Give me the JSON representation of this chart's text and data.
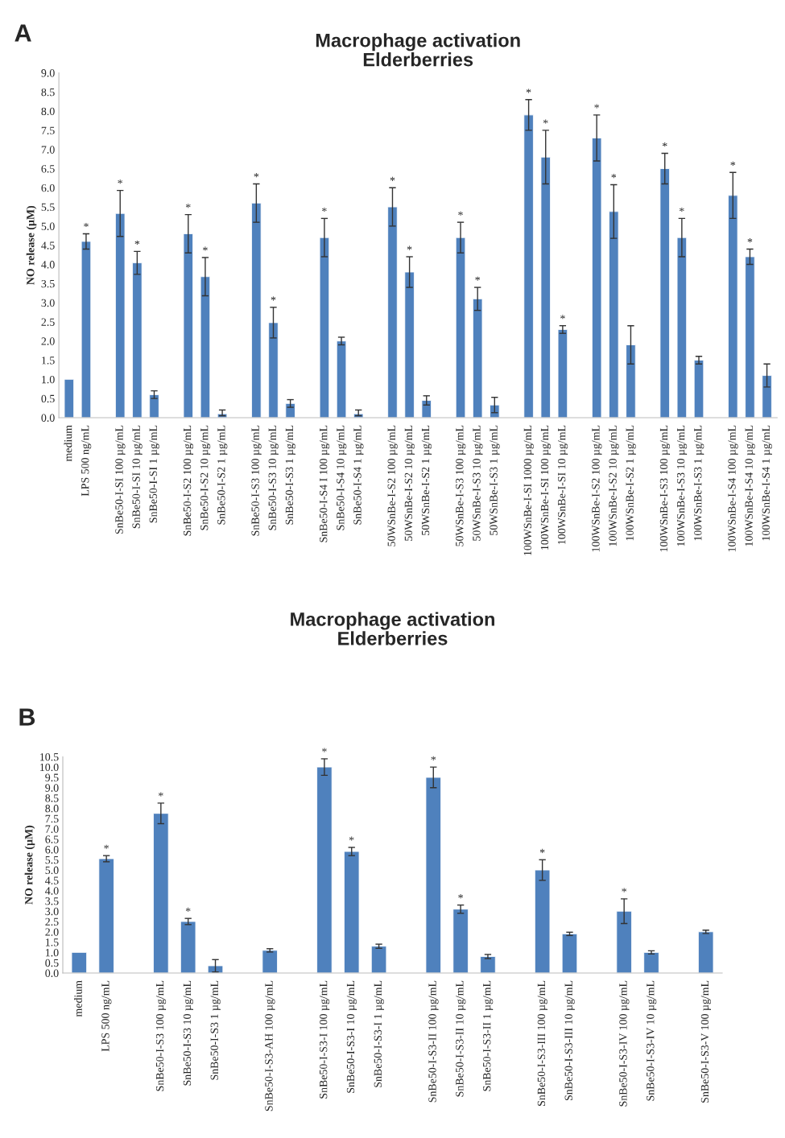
{
  "chart_data": [
    {
      "type": "bar",
      "title": "Macrophage activation\nElderberries",
      "ylabel": "NO release (µM)",
      "categories": [
        "medium",
        "LPS 500 ng/mL",
        null,
        "SnBe50-I-SI 100 µg/mL",
        "SnBe50-I-SI 10 µg/mL",
        "SnBe50-I-SI 1 µg/mL",
        null,
        "SnBe50-I-S2 100 µg/mL",
        "SnBe50-I-S2 10 µg/mL",
        "SnBe50-I-S2 1 µg/mL",
        null,
        "SnBe50-I-S3 100 µg/mL",
        "SnBe50-I-S3 10 µg/mL",
        "SnBe50-I-S3 1 µg/mL",
        null,
        "SnBe50-I-S4 I 100 µg/mL",
        "SnBe50-I-S4 10 µg/mL",
        "SnBe50-I-S4 1 µg/mL",
        null,
        "50WSnBe-I-S2 100 µg/mL",
        "50WSnBe-I-S2 10 µg/mL",
        "50WSnBe-I-S2 1 µg/mL",
        null,
        "50WSnBe-I-S3 100 µg/mL",
        "50WSnBe-I-S3 10 µg/mL",
        "50WSnBe-I-S3 1 µg/mL",
        null,
        "100WSnBe-I-SI 1000 µg/mL",
        "100WSnBe-I-SI 100 µg/mL",
        "100WSnBe-I-SI 10 µg/mL",
        null,
        "100WSnBe-I-S2 100 µg/mL",
        "100WSnBe-I-S2 10 µg/mL",
        "100WSnBe-I-S2 1 µg/mL",
        null,
        "100WSnBe-I-S3 100 µg/mL",
        "100WSnBe-I-S3 10 µg/mL",
        "100WSnBe-I-S3 1 µg/mL",
        null,
        "100WSnBe-I-S4 100 µg/mL",
        "100WSnBe-I-S4 10 µg/mL",
        "100WSnBe-I-S4 1 µg/mL"
      ],
      "color": "#4f81bd",
      "values": [
        1.0,
        4.6,
        null,
        5.33,
        4.04,
        0.6,
        null,
        4.8,
        3.68,
        0.1,
        null,
        5.6,
        2.48,
        0.37,
        null,
        4.7,
        2.0,
        0.1,
        null,
        5.5,
        3.8,
        0.45,
        null,
        4.7,
        3.1,
        0.33,
        null,
        7.9,
        6.8,
        2.3,
        null,
        7.3,
        5.38,
        1.9,
        null,
        6.5,
        4.7,
        1.5,
        null,
        5.8,
        4.2,
        1.1
      ],
      "value_labels": [
        null,
        "*",
        null,
        "*",
        "*",
        null,
        null,
        "*",
        "*",
        null,
        null,
        "*",
        "*",
        null,
        null,
        "*",
        null,
        null,
        null,
        "*",
        "*",
        null,
        null,
        "*",
        "*",
        null,
        null,
        "*",
        "*",
        "*",
        null,
        "*",
        "*",
        null,
        null,
        "*",
        "*",
        null,
        null,
        "*",
        "*",
        null
      ],
      "errors": [
        null,
        0.2,
        null,
        0.6,
        0.3,
        0.1,
        null,
        0.5,
        0.5,
        [
          0.05,
          0.2
        ],
        null,
        0.5,
        0.4,
        0.1,
        null,
        0.5,
        0.1,
        [
          0.05,
          0.2
        ],
        null,
        0.5,
        0.4,
        0.12,
        null,
        0.4,
        0.3,
        0.2,
        null,
        0.4,
        0.7,
        0.1,
        null,
        0.6,
        0.7,
        0.5,
        null,
        0.4,
        0.5,
        0.1,
        null,
        0.6,
        0.2,
        0.3
      ],
      "ylim": [
        0,
        9.0
      ],
      "yticks": [
        {
          "value": 0,
          "label": "0.0"
        },
        0.5,
        {
          "value": 1,
          "label": "1.0"
        },
        1.5,
        {
          "value": 2,
          "label": "2.0"
        },
        2.5,
        {
          "value": 3,
          "label": "3.0"
        },
        3.5,
        {
          "value": 4,
          "label": "4.0"
        },
        4.5,
        {
          "value": 5,
          "label": "5.0"
        },
        5.5,
        {
          "value": 6,
          "label": "6.0"
        },
        6.5,
        {
          "value": 7,
          "label": "7.0"
        },
        7.5,
        {
          "value": 8,
          "label": "8.0"
        },
        8.5,
        {
          "value": 9,
          "label": "9.0"
        }
      ],
      "grid": false,
      "legend": false,
      "annotations": [
        "A"
      ]
    },
    {
      "type": "bar",
      "title": "Macrophage activation\nElderberries",
      "ylabel": "NO release (µM)",
      "categories": [
        "medium",
        "LPS 500 ng/mL",
        null,
        "SnBe50-I-S3 100 µg/mL",
        "SnBe50-I-S3 10 µg/mL",
        "SnBe50-I-S3 1 µg/mL",
        null,
        "SnBe50-I-S3-AH 100 µg/mL",
        null,
        "SnBe50-I-S3-I 100 µg/mL",
        "SnBe50-I-S3-I 10 µg/mL",
        "SnBe50-I-S3-I 1 µg/mL",
        null,
        "SnBe50-I-S3-II 100 µg/mL",
        "SnBe50-I-S3-II 10 µg/mL",
        "SnBe50-I-S3-II 1 µg/mL",
        null,
        "SnBe50-I-S3-III 100 µg/mL",
        "SnBe50-I-S3-III 10 µg/mL",
        null,
        "SnBe50-I-S3-IV 100 µg/mL",
        "SnBe50-I-S3-IV 10 µg/mL",
        null,
        "SnBe50-I-S3-V 100 µg/mL"
      ],
      "color": "#4f81bd",
      "values": [
        1.0,
        5.55,
        null,
        7.75,
        2.5,
        0.35,
        null,
        1.1,
        null,
        10.0,
        5.9,
        1.3,
        null,
        9.5,
        3.1,
        0.8,
        null,
        5.0,
        1.9,
        null,
        3.0,
        1.0,
        null,
        2.0
      ],
      "value_labels": [
        null,
        "*",
        null,
        "*",
        "*",
        null,
        null,
        null,
        null,
        "*",
        "*",
        null,
        null,
        "*",
        "*",
        null,
        null,
        "*",
        null,
        null,
        "*",
        null,
        null,
        null
      ],
      "errors": [
        null,
        0.15,
        null,
        0.5,
        0.15,
        0.3,
        null,
        0.08,
        null,
        0.4,
        0.2,
        0.1,
        null,
        0.5,
        0.2,
        0.1,
        null,
        0.5,
        0.08,
        null,
        0.6,
        0.08,
        null,
        0.08
      ],
      "ylim": [
        0,
        10.5
      ],
      "yticks": [
        {
          "value": 0,
          "label": "0.0"
        },
        0.5,
        {
          "value": 1,
          "label": "1.0"
        },
        1.5,
        {
          "value": 2,
          "label": "2.0"
        },
        2.5,
        {
          "value": 3,
          "label": "3.0"
        },
        3.5,
        {
          "value": 4,
          "label": "4.0"
        },
        4.5,
        {
          "value": 5,
          "label": "5.0"
        },
        5.5,
        {
          "value": 6,
          "label": "6.0"
        },
        6.5,
        {
          "value": 7,
          "label": "7.0"
        },
        7.5,
        {
          "value": 8,
          "label": "8.0"
        },
        8.5,
        {
          "value": 9,
          "label": "9.0"
        },
        9.5,
        {
          "value": 10,
          "label": "10.0"
        },
        10.5
      ],
      "grid": false,
      "legend": false,
      "annotations": [
        "B"
      ]
    }
  ]
}
